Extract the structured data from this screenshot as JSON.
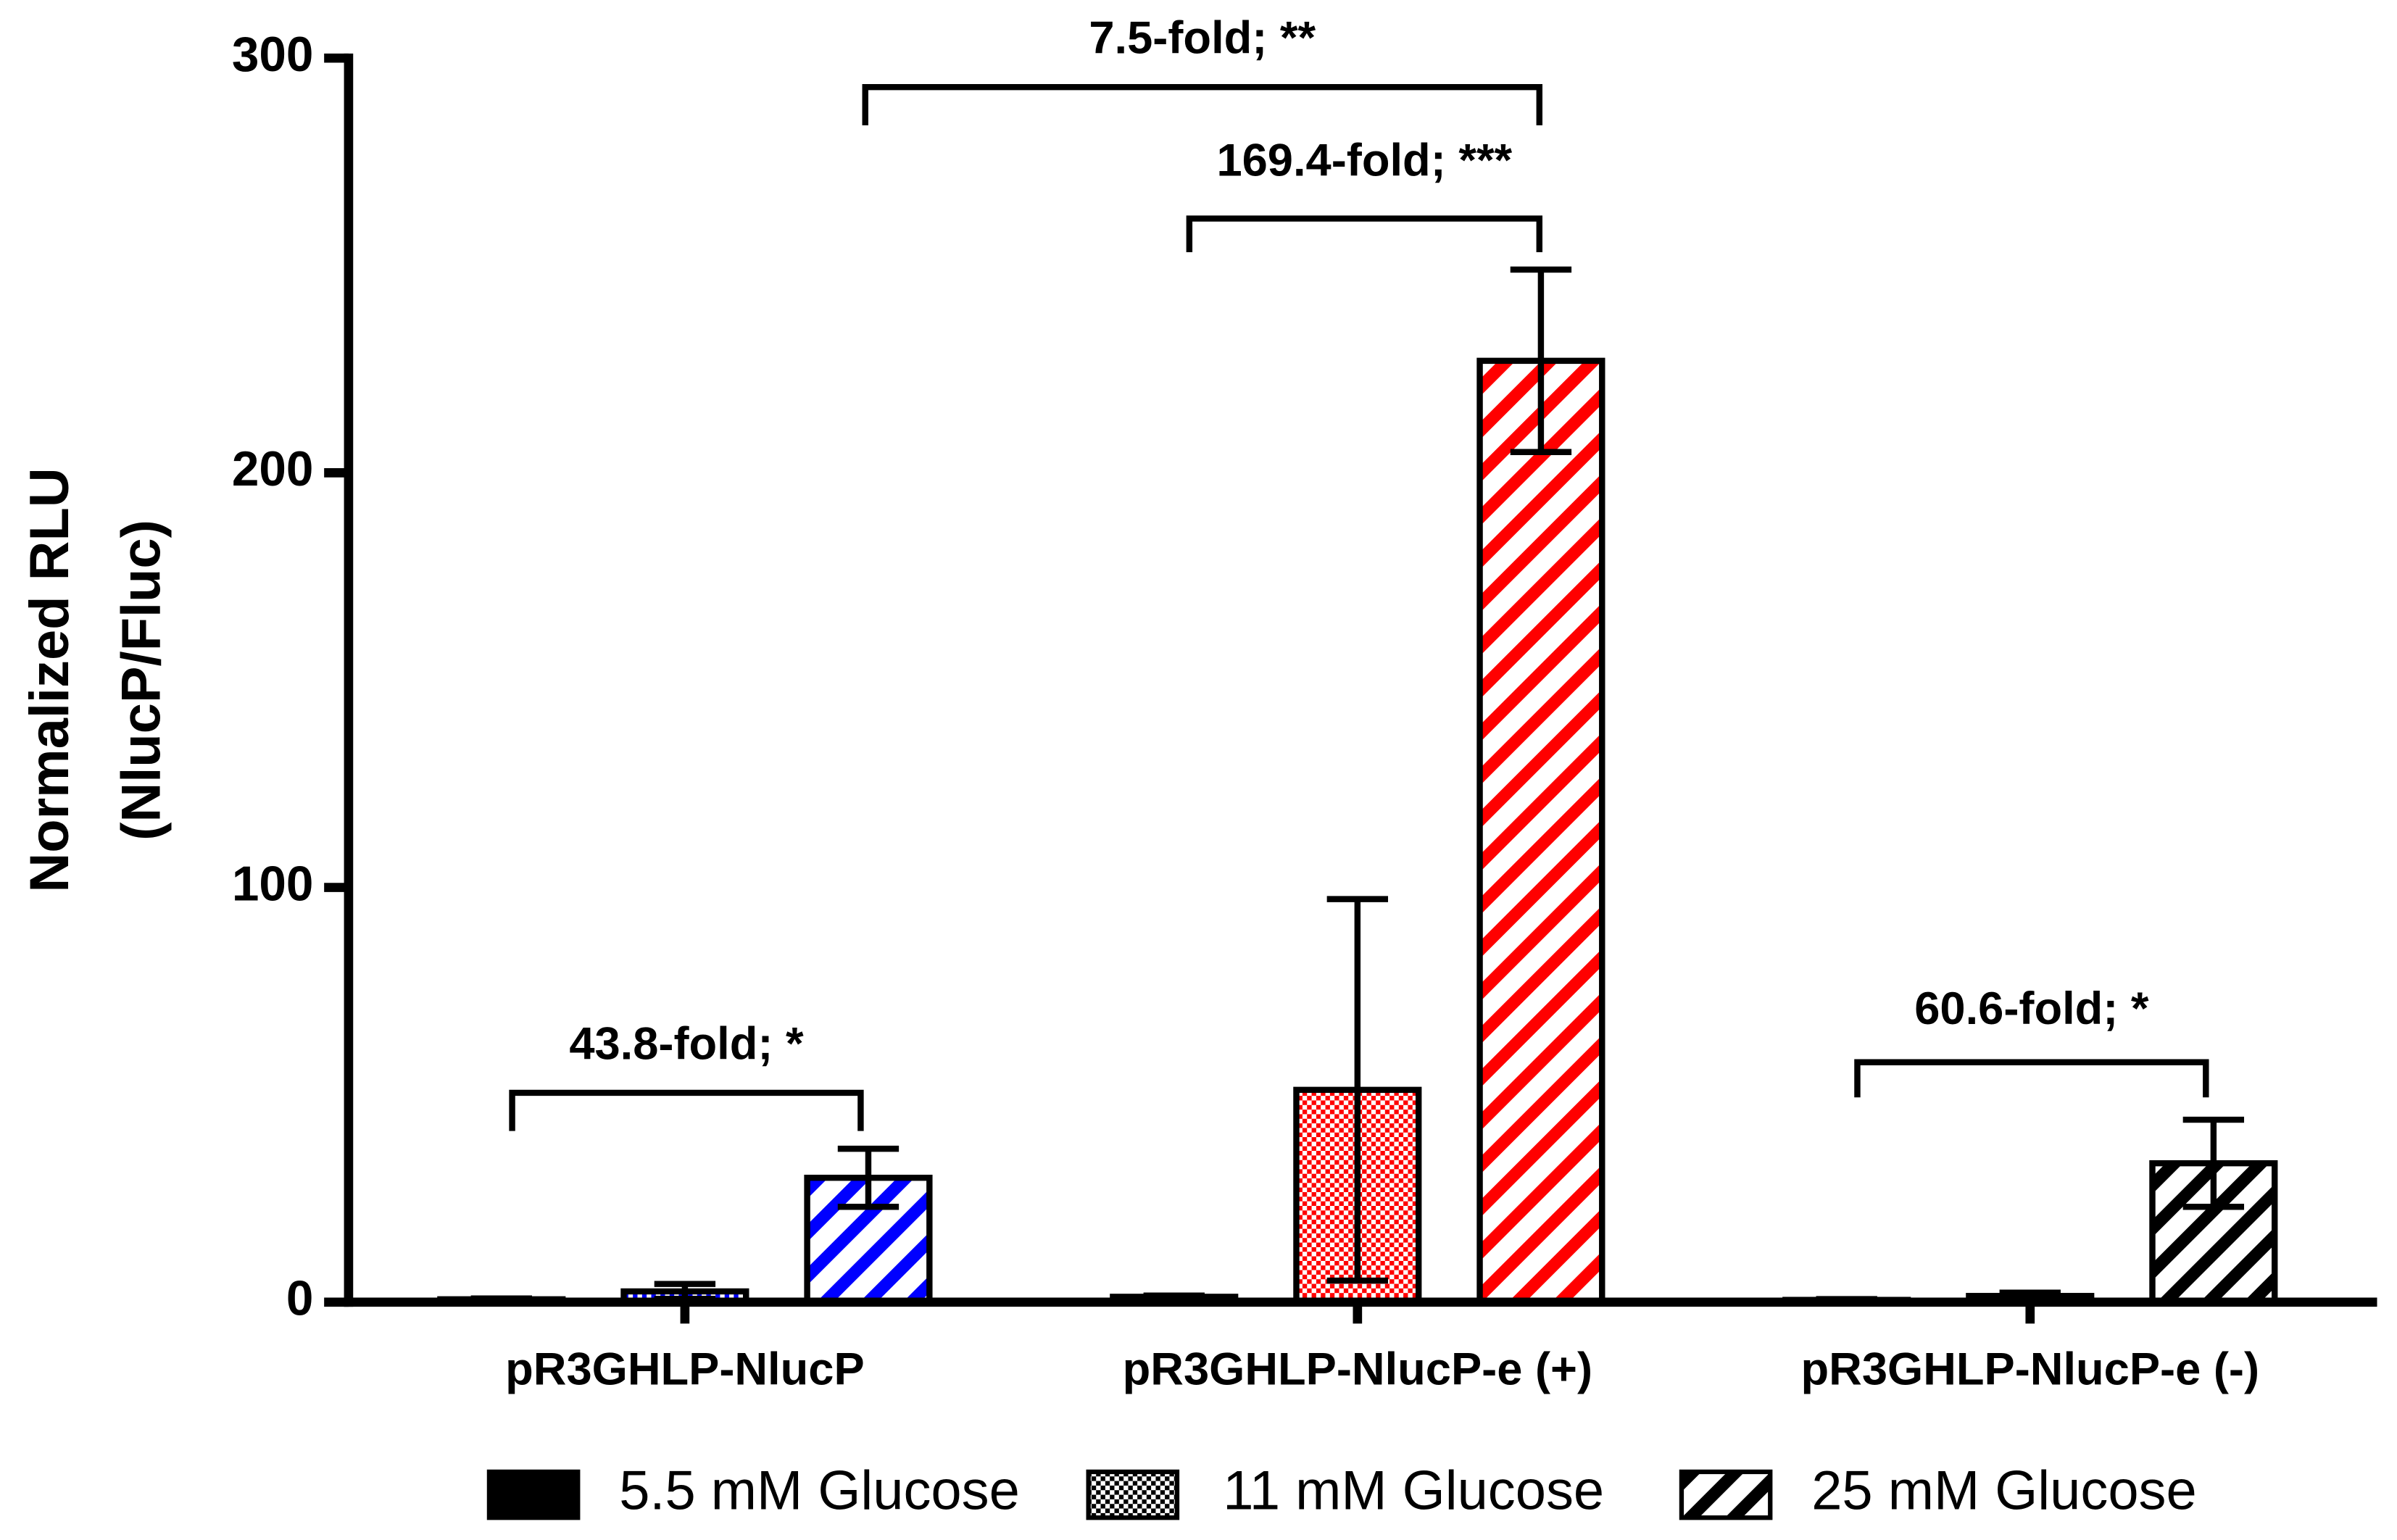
{
  "chart_data": {
    "type": "bar",
    "y_label_lines": [
      "Normalized RLU",
      "(NlucP/Fluc)"
    ],
    "categories": [
      "pR3GHLP-NlucP",
      "pR3GHLP-NlucP-e (+)",
      "pR3GHLP-NlucP-e (-)"
    ],
    "category_colors": [
      "#0000ff",
      "#ff0000",
      "#000000"
    ],
    "series": [
      {
        "name": "5.5 mM Glucose",
        "color": "#000000",
        "pattern": "solid",
        "values": [
          0.7,
          1.3,
          0.55
        ],
        "errors": [
          0.2,
          0.3,
          0.2
        ]
      },
      {
        "name": "11 mM Glucose",
        "color": "#000000",
        "pattern": "checker",
        "values": [
          2.6,
          51.2,
          1.5
        ],
        "errors": [
          1.8,
          46,
          0.8
        ]
      },
      {
        "name": "25 mM Glucose",
        "color": "#000000",
        "pattern": "hatch",
        "values": [
          30,
          227,
          33.5
        ],
        "errors": [
          7,
          22,
          10.5
        ]
      }
    ],
    "annotations": [
      {
        "text": "43.8-fold; *"
      },
      {
        "text": "7.5-fold; **"
      },
      {
        "text": "169.4-fold; ***"
      },
      {
        "text": "60.6-fold; *"
      }
    ],
    "ylim": [
      0,
      300
    ],
    "yticks": [
      0,
      100,
      200,
      300
    ],
    "grid": false
  }
}
